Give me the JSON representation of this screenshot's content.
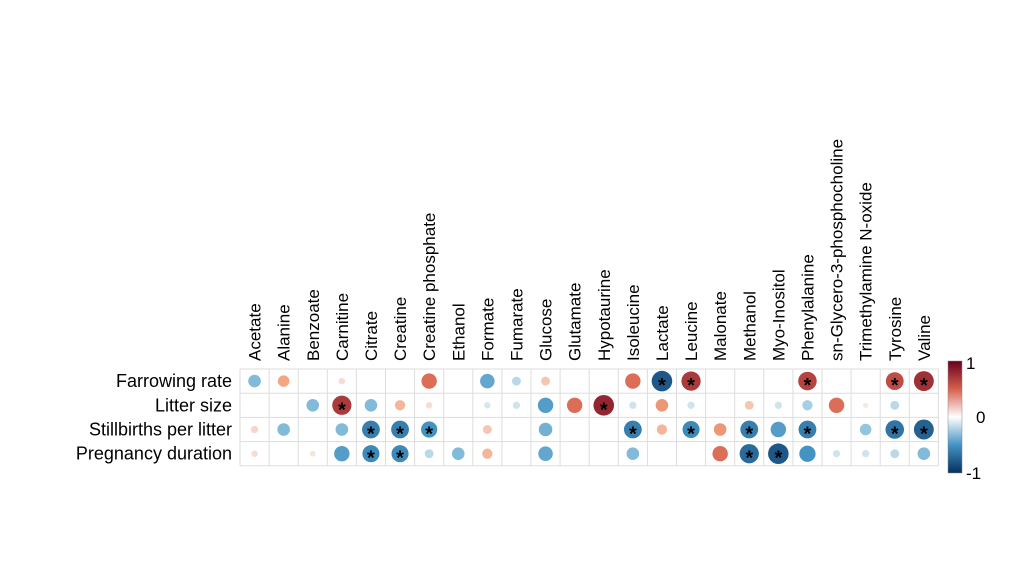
{
  "chart_data": {
    "type": "heatmap",
    "columns": [
      "Acetate",
      "Alanine",
      "Benzoate",
      "Carnitine",
      "Citrate",
      "Creatine",
      "Creatine phosphate",
      "Ethanol",
      "Formate",
      "Fumarate",
      "Glucose",
      "Glutamate",
      "Hypotaurine",
      "Isoleucine",
      "Lactate",
      "Leucine",
      "Malonate",
      "Methanol",
      "Myo-Inositol",
      "Phenylalanine",
      "sn-Glycero-3-phosphocholine",
      "Trimethylamine N-oxide",
      "Tyrosine",
      "Valine"
    ],
    "rows": [
      "Farrowing rate",
      "Litter size",
      "Stillbirths per litter",
      "Pregnancy duration"
    ],
    "values": [
      [
        -0.3,
        0.25,
        0,
        0.08,
        0,
        0,
        0.45,
        0,
        -0.4,
        -0.15,
        0.15,
        0,
        0,
        0.45,
        -0.8,
        0.7,
        0,
        0,
        0,
        0.65,
        0,
        0,
        0.6,
        0.75
      ],
      [
        0,
        0,
        -0.3,
        0.7,
        -0.3,
        0.2,
        0.08,
        0,
        -0.08,
        -0.1,
        -0.45,
        0.45,
        0.8,
        -0.1,
        0.3,
        -0.1,
        0,
        0.15,
        -0.1,
        -0.2,
        0.45,
        0.05,
        -0.15,
        0
      ],
      [
        0.1,
        -0.3,
        0,
        -0.3,
        -0.6,
        -0.6,
        -0.5,
        0,
        0.15,
        0,
        -0.35,
        0,
        0,
        -0.6,
        0.2,
        -0.55,
        0.3,
        -0.6,
        -0.45,
        -0.6,
        0,
        -0.25,
        -0.65,
        -0.75
      ],
      [
        0.08,
        0,
        0.06,
        -0.45,
        -0.55,
        -0.55,
        -0.15,
        -0.3,
        0.2,
        0,
        -0.4,
        0,
        0,
        -0.3,
        0,
        0,
        0.45,
        -0.7,
        -0.8,
        -0.5,
        -0.1,
        -0.1,
        -0.15,
        -0.3
      ]
    ],
    "significant": [
      [
        false,
        false,
        false,
        false,
        false,
        false,
        false,
        false,
        false,
        false,
        false,
        false,
        false,
        false,
        true,
        true,
        false,
        false,
        false,
        true,
        false,
        false,
        true,
        true
      ],
      [
        false,
        false,
        false,
        true,
        false,
        false,
        false,
        false,
        false,
        false,
        false,
        false,
        true,
        false,
        false,
        false,
        false,
        false,
        false,
        false,
        false,
        false,
        false,
        false
      ],
      [
        false,
        false,
        false,
        false,
        true,
        true,
        true,
        false,
        false,
        false,
        false,
        false,
        false,
        true,
        false,
        true,
        false,
        true,
        false,
        true,
        false,
        false,
        true,
        true
      ],
      [
        false,
        false,
        false,
        false,
        true,
        true,
        false,
        false,
        false,
        false,
        false,
        false,
        false,
        false,
        false,
        false,
        false,
        true,
        true,
        false,
        false,
        false,
        false,
        false
      ]
    ],
    "significance_marker": "*",
    "colorbar": {
      "range": [
        -1,
        1
      ],
      "tick_labels": [
        "1",
        "0",
        "-1"
      ],
      "tick_values": [
        1,
        0,
        -1
      ],
      "colors": {
        "negative": "#053061",
        "mid_negative": "#4393c3",
        "neutral": "#ffffff",
        "mid_positive": "#d6604d",
        "positive": "#67001f"
      }
    },
    "grid": true
  }
}
